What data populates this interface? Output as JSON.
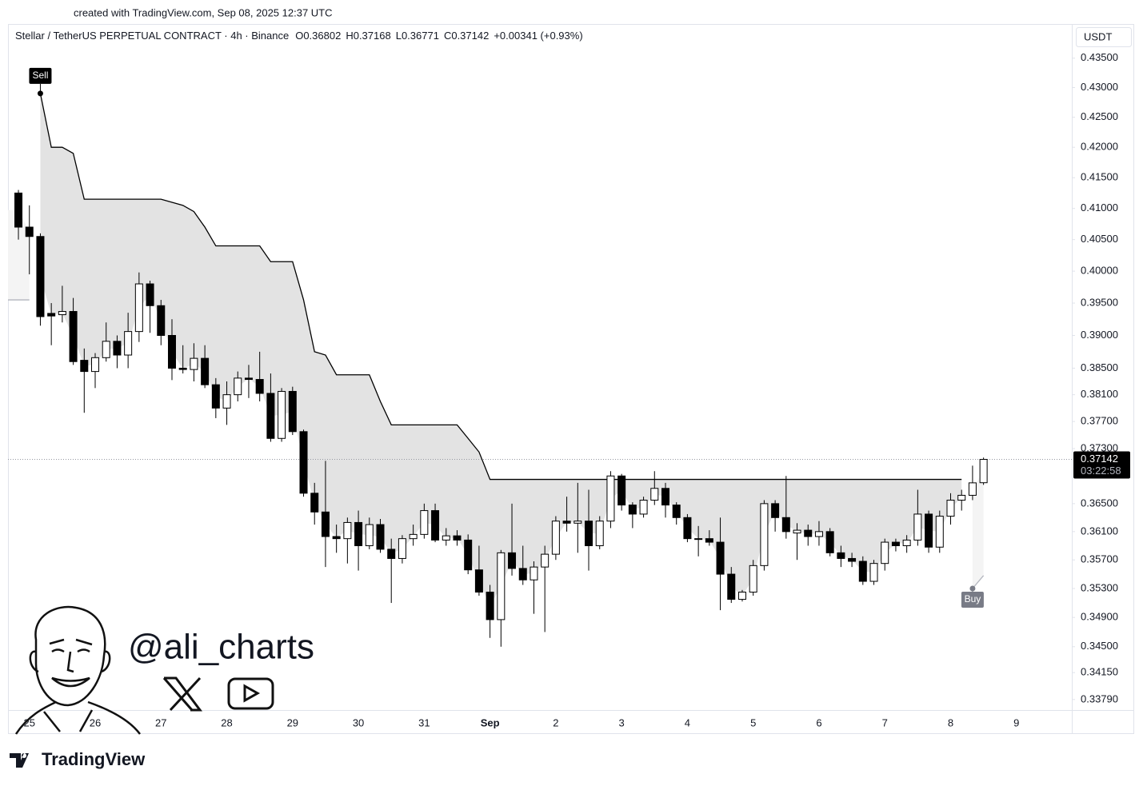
{
  "header": {
    "credit": "created with TradingView.com, Sep 08, 2025 12:37 UTC"
  },
  "watermark": {
    "handle": "@ali_charts"
  },
  "footer": {
    "brand": "TradingView"
  },
  "chart_data": {
    "type": "candlestick",
    "title": "Stellar / TetherUS PERPETUAL CONTRACT · 4h · Binance",
    "legend_values": [
      "O0.36802",
      "H0.37168",
      "L0.36771",
      "C0.37142",
      "+0.00341 (+0.93%)"
    ],
    "currency": "USDT",
    "log": true,
    "up_color": "#ffffff",
    "down_color": "#000000",
    "trend_color": "#000000",
    "down_fill": "#e3e3e3",
    "up_fill": "#f4f4f4",
    "ylim": [
      0.3365,
      0.4409
    ],
    "yticks": [
      {
        "value": 0.435,
        "label": "0.43500"
      },
      {
        "value": 0.43,
        "label": "0.43000"
      },
      {
        "value": 0.425,
        "label": "0.42500"
      },
      {
        "value": 0.42,
        "label": "0.42000"
      },
      {
        "value": 0.415,
        "label": "0.41500"
      },
      {
        "value": 0.41,
        "label": "0.41000"
      },
      {
        "value": 0.405,
        "label": "0.40500"
      },
      {
        "value": 0.4,
        "label": "0.40000"
      },
      {
        "value": 0.395,
        "label": "0.39500"
      },
      {
        "value": 0.39,
        "label": "0.39000"
      },
      {
        "value": 0.385,
        "label": "0.38500"
      },
      {
        "value": 0.381,
        "label": "0.38100"
      },
      {
        "value": 0.377,
        "label": "0.37700"
      },
      {
        "value": 0.373,
        "label": "0.37300"
      },
      {
        "value": 0.365,
        "label": "0.36500"
      },
      {
        "value": 0.361,
        "label": "0.36100"
      },
      {
        "value": 0.357,
        "label": "0.35700"
      },
      {
        "value": 0.353,
        "label": "0.35300"
      },
      {
        "value": 0.349,
        "label": "0.34900"
      },
      {
        "value": 0.345,
        "label": "0.34500"
      },
      {
        "value": 0.3415,
        "label": "0.34150"
      },
      {
        "value": 0.3379,
        "label": "0.33790"
      }
    ],
    "last_price": {
      "value": 0.37142,
      "label": "0.37142",
      "countdown": "03:22:58"
    },
    "categories": [
      null,
      "25",
      null,
      null,
      null,
      null,
      null,
      "26",
      null,
      null,
      null,
      null,
      null,
      "27",
      null,
      null,
      null,
      null,
      null,
      "28",
      null,
      null,
      null,
      null,
      null,
      "29",
      null,
      null,
      null,
      null,
      null,
      "30",
      null,
      null,
      null,
      null,
      null,
      "31",
      null,
      null,
      null,
      null,
      null,
      "Sep",
      null,
      null,
      null,
      null,
      null,
      "2",
      null,
      null,
      null,
      null,
      null,
      "3",
      null,
      null,
      null,
      null,
      null,
      "4",
      null,
      null,
      null,
      null,
      null,
      "5",
      null,
      null,
      null,
      null,
      null,
      "6",
      null,
      null,
      null,
      null,
      null,
      "7",
      null,
      null,
      null,
      null,
      null,
      "8",
      null,
      null,
      null,
      null,
      null,
      "9",
      null,
      null,
      null,
      null,
      null
    ],
    "open": [
      0.4125,
      0.407,
      0.4055,
      0.3934,
      0.3932,
      0.3937,
      0.3862,
      0.3845,
      0.3866,
      0.3891,
      0.387,
      0.3906,
      0.398,
      0.3946,
      0.39,
      0.385,
      0.3848,
      0.3865,
      0.3825,
      0.379,
      0.381,
      0.3835,
      0.3833,
      0.3812,
      0.3745,
      0.3815,
      0.3755,
      0.3665,
      0.3638,
      0.3603,
      0.36,
      0.3623,
      0.359,
      0.362,
      0.3585,
      0.3572,
      0.36,
      0.3606,
      0.364,
      0.3598,
      0.3604,
      0.3598,
      0.3556,
      0.3525,
      0.3487,
      0.358,
      0.3558,
      0.3542,
      0.356,
      0.3578,
      0.3625,
      0.3622,
      0.3625,
      0.359,
      0.3625,
      0.369,
      0.3648,
      0.3635,
      0.3655,
      0.3672,
      0.3648,
      0.363,
      0.36,
      0.36,
      0.3595,
      0.355,
      0.3515,
      0.3525,
      0.3562,
      0.365,
      0.363,
      0.3608,
      0.3612,
      0.3603,
      0.361,
      0.358,
      0.3572,
      0.3568,
      0.354,
      0.3565,
      0.3595,
      0.359,
      0.3598,
      0.3635,
      0.3588,
      0.3632,
      0.3655,
      0.3662,
      0.36802,
      null,
      null,
      null,
      null,
      null,
      null,
      null,
      null
    ],
    "high": [
      0.413,
      0.4105,
      0.406,
      0.395,
      0.3977,
      0.3958,
      0.388,
      0.3873,
      0.392,
      0.39,
      0.3935,
      0.3998,
      0.3985,
      0.3955,
      0.3925,
      0.3885,
      0.3888,
      0.3885,
      0.3835,
      0.383,
      0.3845,
      0.3855,
      0.3875,
      0.3842,
      0.382,
      0.3822,
      0.3758,
      0.368,
      0.3712,
      0.362,
      0.363,
      0.364,
      0.363,
      0.3628,
      0.36,
      0.3605,
      0.362,
      0.365,
      0.365,
      0.3615,
      0.3612,
      0.3606,
      0.359,
      0.3535,
      0.3584,
      0.365,
      0.359,
      0.3568,
      0.359,
      0.3632,
      0.366,
      0.368,
      0.367,
      0.3632,
      0.3697,
      0.3693,
      0.3652,
      0.366,
      0.3697,
      0.368,
      0.3652,
      0.3635,
      0.3618,
      0.3612,
      0.363,
      0.356,
      0.3528,
      0.357,
      0.3655,
      0.3655,
      0.369,
      0.3622,
      0.362,
      0.3625,
      0.3615,
      0.359,
      0.358,
      0.3575,
      0.357,
      0.36,
      0.36,
      0.3605,
      0.367,
      0.364,
      0.364,
      0.3665,
      0.367,
      0.3705,
      0.37168,
      null,
      null,
      null,
      null,
      null,
      null,
      null,
      null
    ],
    "low": [
      0.405,
      0.3995,
      0.3915,
      0.3885,
      0.392,
      0.3855,
      0.3783,
      0.382,
      0.386,
      0.385,
      0.385,
      0.389,
      0.3904,
      0.3885,
      0.3832,
      0.3842,
      0.383,
      0.382,
      0.3775,
      0.3765,
      0.38,
      0.3805,
      0.38,
      0.374,
      0.374,
      0.375,
      0.366,
      0.362,
      0.356,
      0.358,
      0.3565,
      0.3555,
      0.3585,
      0.358,
      0.351,
      0.3565,
      0.359,
      0.36,
      0.3595,
      0.359,
      0.359,
      0.355,
      0.352,
      0.3462,
      0.345,
      0.3548,
      0.3535,
      0.3495,
      0.347,
      0.357,
      0.361,
      0.358,
      0.3555,
      0.3585,
      0.3615,
      0.364,
      0.3615,
      0.363,
      0.3648,
      0.363,
      0.362,
      0.3595,
      0.3575,
      0.359,
      0.35,
      0.351,
      0.3512,
      0.352,
      0.3555,
      0.361,
      0.36,
      0.357,
      0.359,
      0.359,
      0.3575,
      0.356,
      0.356,
      0.3535,
      0.3535,
      0.3555,
      0.3582,
      0.358,
      0.359,
      0.358,
      0.358,
      0.362,
      0.364,
      0.3655,
      0.36771,
      null,
      null,
      null,
      null,
      null,
      null,
      null,
      null
    ],
    "close": [
      0.407,
      0.4055,
      0.3929,
      0.393,
      0.3937,
      0.386,
      0.3845,
      0.3866,
      0.3891,
      0.387,
      0.3906,
      0.398,
      0.3946,
      0.39,
      0.385,
      0.3848,
      0.3865,
      0.3825,
      0.379,
      0.381,
      0.3835,
      0.3833,
      0.3812,
      0.3745,
      0.3815,
      0.3755,
      0.3665,
      0.3638,
      0.3603,
      0.36,
      0.3623,
      0.359,
      0.362,
      0.3585,
      0.3572,
      0.36,
      0.3606,
      0.364,
      0.3598,
      0.3604,
      0.3598,
      0.3556,
      0.3525,
      0.3487,
      0.358,
      0.3558,
      0.3542,
      0.356,
      0.3578,
      0.3625,
      0.3622,
      0.3625,
      0.359,
      0.3625,
      0.369,
      0.3648,
      0.3635,
      0.3655,
      0.3672,
      0.3648,
      0.363,
      0.36,
      0.36,
      0.3595,
      0.355,
      0.3515,
      0.3525,
      0.3562,
      0.365,
      0.363,
      0.361,
      0.3612,
      0.3603,
      0.361,
      0.358,
      0.3572,
      0.3568,
      0.354,
      0.3565,
      0.3595,
      0.359,
      0.3598,
      0.3635,
      0.3588,
      0.3632,
      0.3655,
      0.3662,
      0.368,
      0.37142,
      null,
      null,
      null,
      null,
      null,
      null,
      null,
      null
    ],
    "supertrend_down": [
      null,
      null,
      0.429,
      0.42,
      0.42,
      0.419,
      0.4115,
      0.4115,
      0.4115,
      0.4115,
      0.4115,
      0.4115,
      0.4115,
      0.4115,
      0.411,
      0.4105,
      0.4095,
      0.407,
      0.404,
      0.404,
      0.404,
      0.404,
      0.404,
      0.4015,
      0.4015,
      0.4015,
      0.3955,
      0.3875,
      0.387,
      0.384,
      0.384,
      0.384,
      0.384,
      0.38,
      0.3765,
      0.3765,
      0.3765,
      0.3765,
      0.3765,
      0.3765,
      0.3765,
      0.3745,
      0.3725,
      0.3685,
      0.3685,
      0.3685,
      0.3685,
      0.3685,
      0.3685,
      0.3685,
      0.3685,
      0.3685,
      0.3685,
      0.3685,
      0.3685,
      0.3685,
      0.3685,
      0.3685,
      0.3685,
      0.3685,
      0.3685,
      0.3685,
      0.3685,
      0.3685,
      0.3685,
      0.3685,
      0.3685,
      0.3685,
      0.3685,
      0.3685,
      0.3685,
      0.3685,
      0.3685,
      0.3685,
      0.3685,
      0.3685,
      0.3685,
      0.3685,
      0.3685,
      0.3685,
      0.3685,
      0.3685,
      0.3685,
      0.3685,
      0.3685,
      0.3685,
      0.3685,
      null,
      null,
      null,
      null,
      null,
      null,
      null,
      null,
      null,
      null
    ],
    "supertrend_up": [
      0.3955,
      0.3955,
      null,
      null,
      null,
      null,
      null,
      null,
      null,
      null,
      null,
      null,
      null,
      null,
      null,
      null,
      null,
      null,
      null,
      null,
      null,
      null,
      null,
      null,
      null,
      null,
      null,
      null,
      null,
      null,
      null,
      null,
      null,
      null,
      null,
      null,
      null,
      null,
      null,
      null,
      null,
      null,
      null,
      null,
      null,
      null,
      null,
      null,
      null,
      null,
      null,
      null,
      null,
      null,
      null,
      null,
      null,
      null,
      null,
      null,
      null,
      null,
      null,
      null,
      null,
      null,
      null,
      null,
      null,
      null,
      null,
      null,
      null,
      null,
      null,
      null,
      null,
      null,
      null,
      null,
      null,
      null,
      null,
      null,
      null,
      null,
      null,
      0.353,
      0.3548,
      null,
      null,
      null,
      null,
      null,
      null,
      null,
      null
    ],
    "signals": [
      null,
      null,
      "Sell",
      null,
      null,
      null,
      null,
      null,
      null,
      null,
      null,
      null,
      null,
      null,
      null,
      null,
      null,
      null,
      null,
      null,
      null,
      null,
      null,
      null,
      null,
      null,
      null,
      null,
      null,
      null,
      null,
      null,
      null,
      null,
      null,
      null,
      null,
      null,
      null,
      null,
      null,
      null,
      null,
      null,
      null,
      null,
      null,
      null,
      null,
      null,
      null,
      null,
      null,
      null,
      null,
      null,
      null,
      null,
      null,
      null,
      null,
      null,
      null,
      null,
      null,
      null,
      null,
      null,
      null,
      null,
      null,
      null,
      null,
      null,
      null,
      null,
      null,
      null,
      null,
      null,
      null,
      null,
      null,
      null,
      null,
      null,
      null,
      "Buy",
      null,
      null,
      null,
      null,
      null,
      null,
      null,
      null,
      null
    ]
  }
}
